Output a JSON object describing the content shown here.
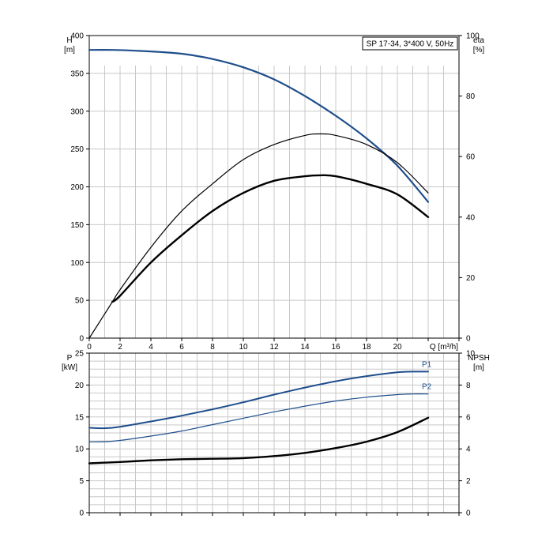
{
  "chart_data": [
    {
      "type": "line",
      "legend_box": "SP 17-34, 3*400 V, 50Hz",
      "xlabel": "Q [m³/h]",
      "xlim": [
        0,
        24
      ],
      "x_ticks": [
        0,
        2,
        4,
        6,
        8,
        10,
        12,
        14,
        16,
        18,
        20
      ],
      "y_left_label": [
        "H",
        "[m]"
      ],
      "y_left_lim": [
        0,
        400
      ],
      "y_left_ticks": [
        0,
        50,
        100,
        150,
        200,
        250,
        300,
        350,
        400
      ],
      "y_right_label": [
        "eta",
        "[%]"
      ],
      "y_right_lim": [
        0,
        100
      ],
      "y_right_ticks": [
        0,
        20,
        40,
        60,
        80,
        100
      ],
      "grid": true,
      "series": [
        {
          "axis": "left",
          "color": "#1f4e8c",
          "x": [
            0,
            1.5,
            3,
            4,
            6,
            8,
            10,
            12,
            14,
            16,
            18,
            20,
            22
          ],
          "y": [
            381,
            381,
            380,
            379,
            376,
            369,
            358,
            342,
            320,
            294,
            264,
            228,
            180
          ]
        },
        {
          "axis": "right",
          "color": "#000000",
          "x": [
            0,
            1.5,
            2,
            4,
            6,
            8,
            10,
            12,
            14,
            15,
            16,
            18,
            20,
            22
          ],
          "y": [
            0,
            12,
            16,
            30,
            42,
            51,
            59,
            64,
            67,
            67.5,
            67,
            64,
            58,
            48
          ]
        },
        {
          "axis": "right",
          "color": "#000000",
          "x": [
            1.5,
            2,
            4,
            6,
            8,
            10,
            12,
            14,
            15,
            16,
            18,
            20,
            22
          ],
          "y": [
            12,
            14,
            25,
            34,
            42,
            48,
            52,
            53.5,
            53.8,
            53.5,
            51,
            47.5,
            40
          ]
        }
      ]
    },
    {
      "type": "line",
      "xlim": [
        0,
        24
      ],
      "y_left_label": [
        "P",
        "[kW]"
      ],
      "y_left_lim": [
        0,
        25
      ],
      "y_left_ticks": [
        0,
        5,
        10,
        15,
        20,
        25
      ],
      "y_right_label": [
        "NPSH",
        "[m]"
      ],
      "y_right_lim": [
        0,
        10
      ],
      "y_right_ticks": [
        0,
        2,
        4,
        6,
        8,
        10
      ],
      "grid": true,
      "series": [
        {
          "name": "P1",
          "axis": "left",
          "color": "#1f4e8c",
          "x": [
            0,
            1.5,
            4,
            6,
            8,
            10,
            12,
            14,
            16,
            18,
            20,
            21,
            22
          ],
          "y": [
            13.3,
            13.3,
            14.3,
            15.2,
            16.2,
            17.3,
            18.5,
            19.6,
            20.6,
            21.4,
            22.0,
            22.1,
            22.1
          ]
        },
        {
          "name": "P2",
          "axis": "left",
          "color": "#1f4e8c",
          "x": [
            0,
            1.5,
            4,
            6,
            8,
            10,
            12,
            14,
            16,
            18,
            20,
            21,
            22
          ],
          "y": [
            11.1,
            11.2,
            12.0,
            12.8,
            13.8,
            14.8,
            15.8,
            16.7,
            17.5,
            18.1,
            18.5,
            18.6,
            18.6
          ]
        },
        {
          "axis": "right",
          "color": "#000000",
          "x": [
            0,
            2,
            4,
            6,
            8,
            10,
            12,
            14,
            16,
            18,
            20,
            22
          ],
          "y": [
            3.1,
            3.18,
            3.28,
            3.35,
            3.38,
            3.42,
            3.55,
            3.75,
            4.05,
            4.45,
            5.05,
            5.95
          ]
        }
      ]
    }
  ]
}
